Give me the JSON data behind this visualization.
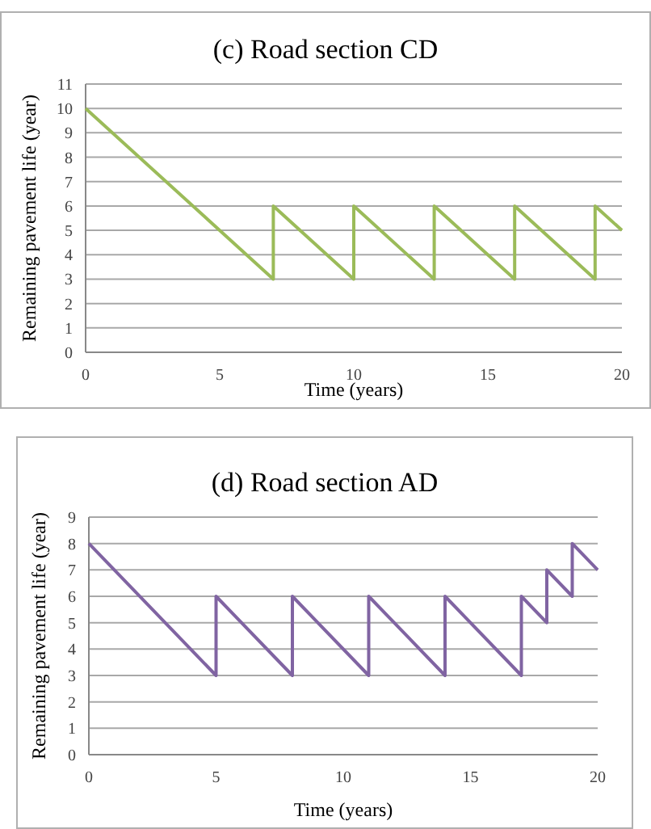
{
  "chart_data": [
    {
      "type": "line",
      "title": "(c) Road section CD",
      "xlabel": "Time (years)",
      "ylabel": "Remaining pavement life (year)",
      "xlim": [
        0,
        20
      ],
      "xticks": [
        0,
        5,
        10,
        15,
        20
      ],
      "ylim": [
        0,
        11
      ],
      "yticks": [
        0,
        1,
        2,
        3,
        4,
        5,
        6,
        7,
        8,
        9,
        10,
        11
      ],
      "grid": "y",
      "marker": "none",
      "line_style": "solid",
      "series": [
        {
          "color": "#9bbb59",
          "x": [
            0,
            7,
            7,
            10,
            10,
            13,
            13,
            16,
            16,
            19,
            19,
            20
          ],
          "values": [
            10,
            3,
            6,
            3,
            6,
            3,
            6,
            3,
            6,
            3,
            6,
            5
          ]
        }
      ]
    },
    {
      "type": "line",
      "title": "(d) Road section AD",
      "xlabel": "Time (years)",
      "ylabel": "Remaining pavement life (year)",
      "xlim": [
        0,
        20
      ],
      "xticks": [
        0,
        5,
        10,
        15,
        20
      ],
      "ylim": [
        0,
        9
      ],
      "yticks": [
        0,
        1,
        2,
        3,
        4,
        5,
        6,
        7,
        8,
        9
      ],
      "grid": "y",
      "marker": "none",
      "line_style": "solid",
      "series": [
        {
          "color": "#8064a2",
          "x": [
            0,
            5,
            5,
            8,
            8,
            11,
            11,
            14,
            14,
            17,
            17,
            18,
            18,
            19,
            19,
            20
          ],
          "values": [
            8,
            3,
            6,
            3,
            6,
            3,
            6,
            3,
            6,
            3,
            6,
            5,
            7,
            6,
            8,
            7
          ]
        }
      ]
    }
  ]
}
